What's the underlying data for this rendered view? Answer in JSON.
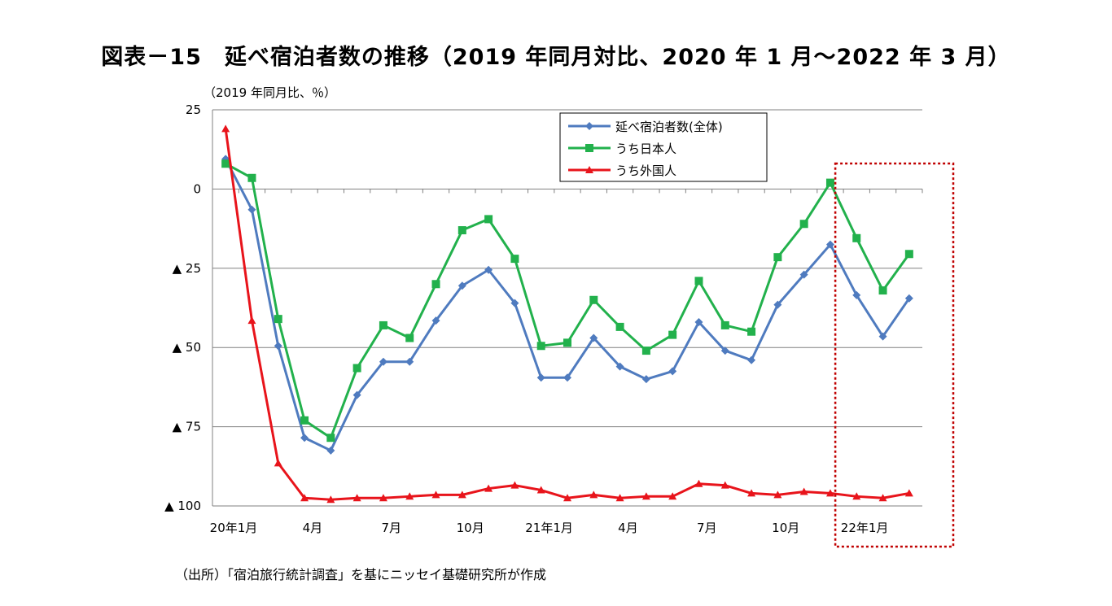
{
  "title": "図表－15　延べ宿泊者数の推移（2019 年同月対比、2020 年 1 月～2022 年 3 月）",
  "unit_label": "（2019 年同月比、％）",
  "source": "（出所）「宿泊旅行統計調査」を基にニッセイ基礎研究所が作成",
  "colors": {
    "total": "#4F7BBF",
    "japanese": "#22B14C",
    "foreign": "#E8141B",
    "highlight_box": "#C00000",
    "grid": "#808080"
  },
  "chart_data": {
    "type": "line",
    "ylim": [
      -100,
      25
    ],
    "y_ticks": [
      {
        "value": 25,
        "label": "25"
      },
      {
        "value": 0,
        "label": "0"
      },
      {
        "value": -25,
        "label": "▲ 25"
      },
      {
        "value": -50,
        "label": "▲ 50"
      },
      {
        "value": -75,
        "label": "▲ 75"
      },
      {
        "value": -100,
        "label": "▲ 100"
      }
    ],
    "x": [
      "2020-01",
      "2020-02",
      "2020-03",
      "2020-04",
      "2020-05",
      "2020-06",
      "2020-07",
      "2020-08",
      "2020-09",
      "2020-10",
      "2020-11",
      "2020-12",
      "2021-01",
      "2021-02",
      "2021-03",
      "2021-04",
      "2021-05",
      "2021-06",
      "2021-07",
      "2021-08",
      "2021-09",
      "2021-10",
      "2021-11",
      "2021-12",
      "2022-01",
      "2022-02",
      "2022-03"
    ],
    "x_tick_labels": [
      {
        "index": 0,
        "label": "20年1月"
      },
      {
        "index": 3,
        "label": "4月"
      },
      {
        "index": 6,
        "label": "7月"
      },
      {
        "index": 9,
        "label": "10月"
      },
      {
        "index": 12,
        "label": "21年1月"
      },
      {
        "index": 15,
        "label": "4月"
      },
      {
        "index": 18,
        "label": "7月"
      },
      {
        "index": 21,
        "label": "10月"
      },
      {
        "index": 24,
        "label": "22年1月"
      }
    ],
    "highlight_range": [
      24,
      26
    ],
    "legend_position": "top-right",
    "series": [
      {
        "name": "延べ宿泊者数(全体)",
        "marker": "diamond",
        "color": "#4F7BBF",
        "values": [
          9.5,
          -6.5,
          -49.5,
          -78.5,
          -82.5,
          -65,
          -54.5,
          -54.5,
          -41.5,
          -30.5,
          -25.5,
          -36,
          -59.5,
          -59.5,
          -47,
          -56,
          -60,
          -57.5,
          -42,
          -51,
          -54,
          -36.5,
          -27,
          -17.5,
          -33.5,
          -46.5,
          -34.5
        ]
      },
      {
        "name": "うち日本人",
        "marker": "square",
        "color": "#22B14C",
        "values": [
          8,
          3.5,
          -41,
          -73,
          -78.5,
          -56.5,
          -43,
          -47,
          -30,
          -13,
          -9.5,
          -22,
          -49.5,
          -48.5,
          -35,
          -43.5,
          -51,
          -46,
          -29,
          -43,
          -45,
          -21.5,
          -11,
          2,
          -15.5,
          -32,
          -20.5
        ]
      },
      {
        "name": "うち外国人",
        "marker": "triangle",
        "color": "#E8141B",
        "values": [
          19,
          -41.5,
          -86.5,
          -97.5,
          -98,
          -97.5,
          -97.5,
          -97,
          -96.5,
          -96.5,
          -94.5,
          -93.5,
          -95,
          -97.5,
          -96.5,
          -97.5,
          -97,
          -97,
          -93,
          -93.5,
          -96,
          -96.5,
          -95.5,
          -96,
          -97,
          -97.5,
          -96
        ]
      }
    ]
  }
}
